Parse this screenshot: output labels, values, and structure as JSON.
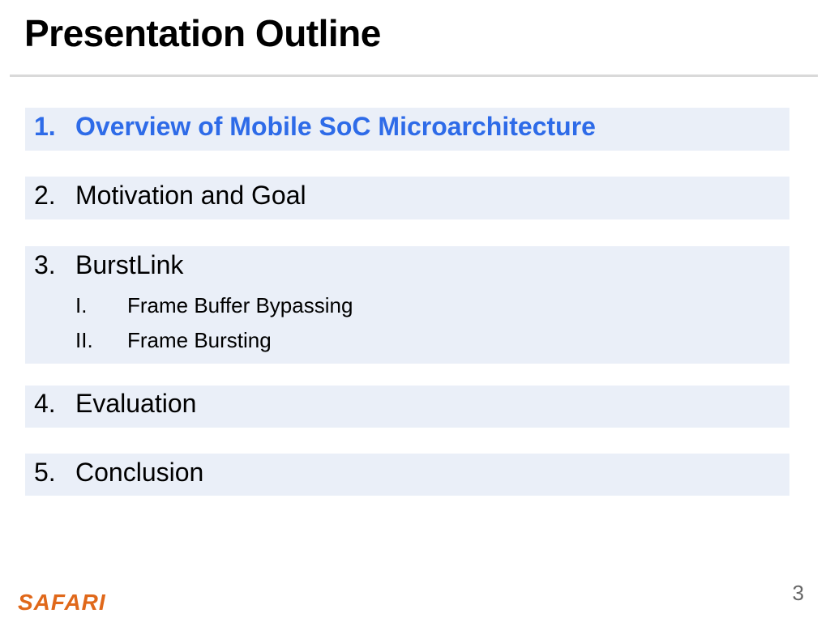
{
  "slide": {
    "title": "Presentation Outline",
    "page_number": "3",
    "logo_text": "SAFARI"
  },
  "colors": {
    "active_item": "#2e6be8",
    "item_background": "#eaeff8",
    "logo": "#e0681a"
  },
  "outline": [
    {
      "number": "1.",
      "label": "Overview of Mobile SoC Microarchitecture",
      "active": true
    },
    {
      "number": "2.",
      "label": "Motivation and Goal"
    },
    {
      "number": "3.",
      "label": "BurstLink",
      "subitems": [
        {
          "number": "I.",
          "label": "Frame Buffer Bypassing"
        },
        {
          "number": "II.",
          "label": "Frame Bursting"
        }
      ]
    },
    {
      "number": "4.",
      "label": "Evaluation"
    },
    {
      "number": "5.",
      "label": "Conclusion"
    }
  ]
}
